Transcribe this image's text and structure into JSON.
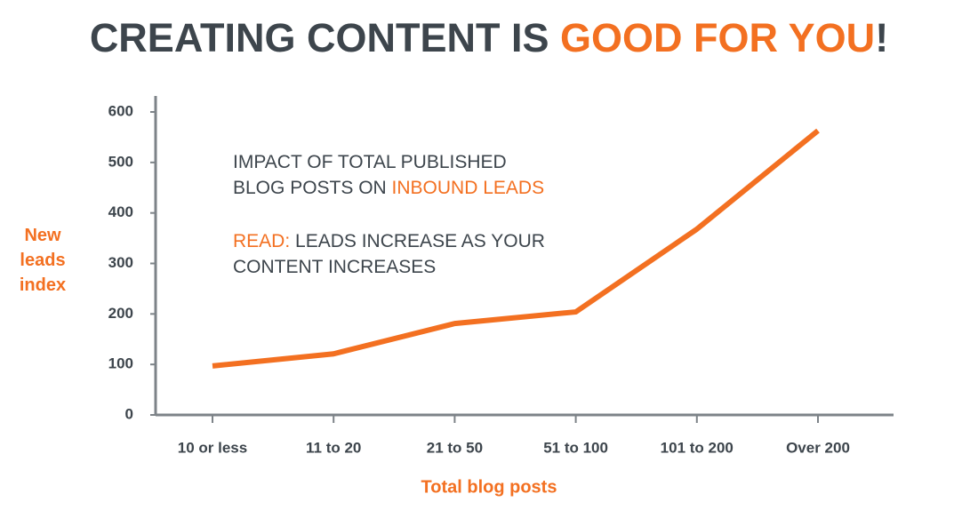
{
  "chart_data": {
    "type": "line",
    "title_parts": [
      {
        "text": "CREATING CONTENT IS ",
        "color": "#3d454c"
      },
      {
        "text": "GOOD FOR YOU",
        "color": "#f37021"
      },
      {
        "text": "!",
        "color": "#3d454c"
      }
    ],
    "annotation_lines": [
      [
        {
          "text": "IMPACT OF TOTAL PUBLISHED",
          "color": "#3d454c"
        }
      ],
      [
        {
          "text": "BLOG POSTS ON ",
          "color": "#3d454c"
        },
        {
          "text": "INBOUND LEADS",
          "color": "#f37021"
        }
      ],
      [
        {
          "text": "READ:",
          "color": "#f37021"
        },
        {
          "text": " LEADS INCREASE AS YOUR",
          "color": "#3d454c"
        }
      ],
      [
        {
          "text": "CONTENT INCREASES",
          "color": "#3d454c"
        }
      ]
    ],
    "x_label": "Total blog posts",
    "y_label": "New leads index",
    "categories": [
      "10 or less",
      "11 to 20",
      "21 to 50",
      "51 to 100",
      "101 to 200",
      "Over 200"
    ],
    "series": [
      {
        "color": "#f37021",
        "values": [
          97,
          121,
          181,
          204,
          368,
          563
        ]
      }
    ],
    "ylim": [
      0,
      600
    ],
    "yticks": [
      0,
      100,
      200,
      300,
      400,
      500,
      600
    ]
  }
}
